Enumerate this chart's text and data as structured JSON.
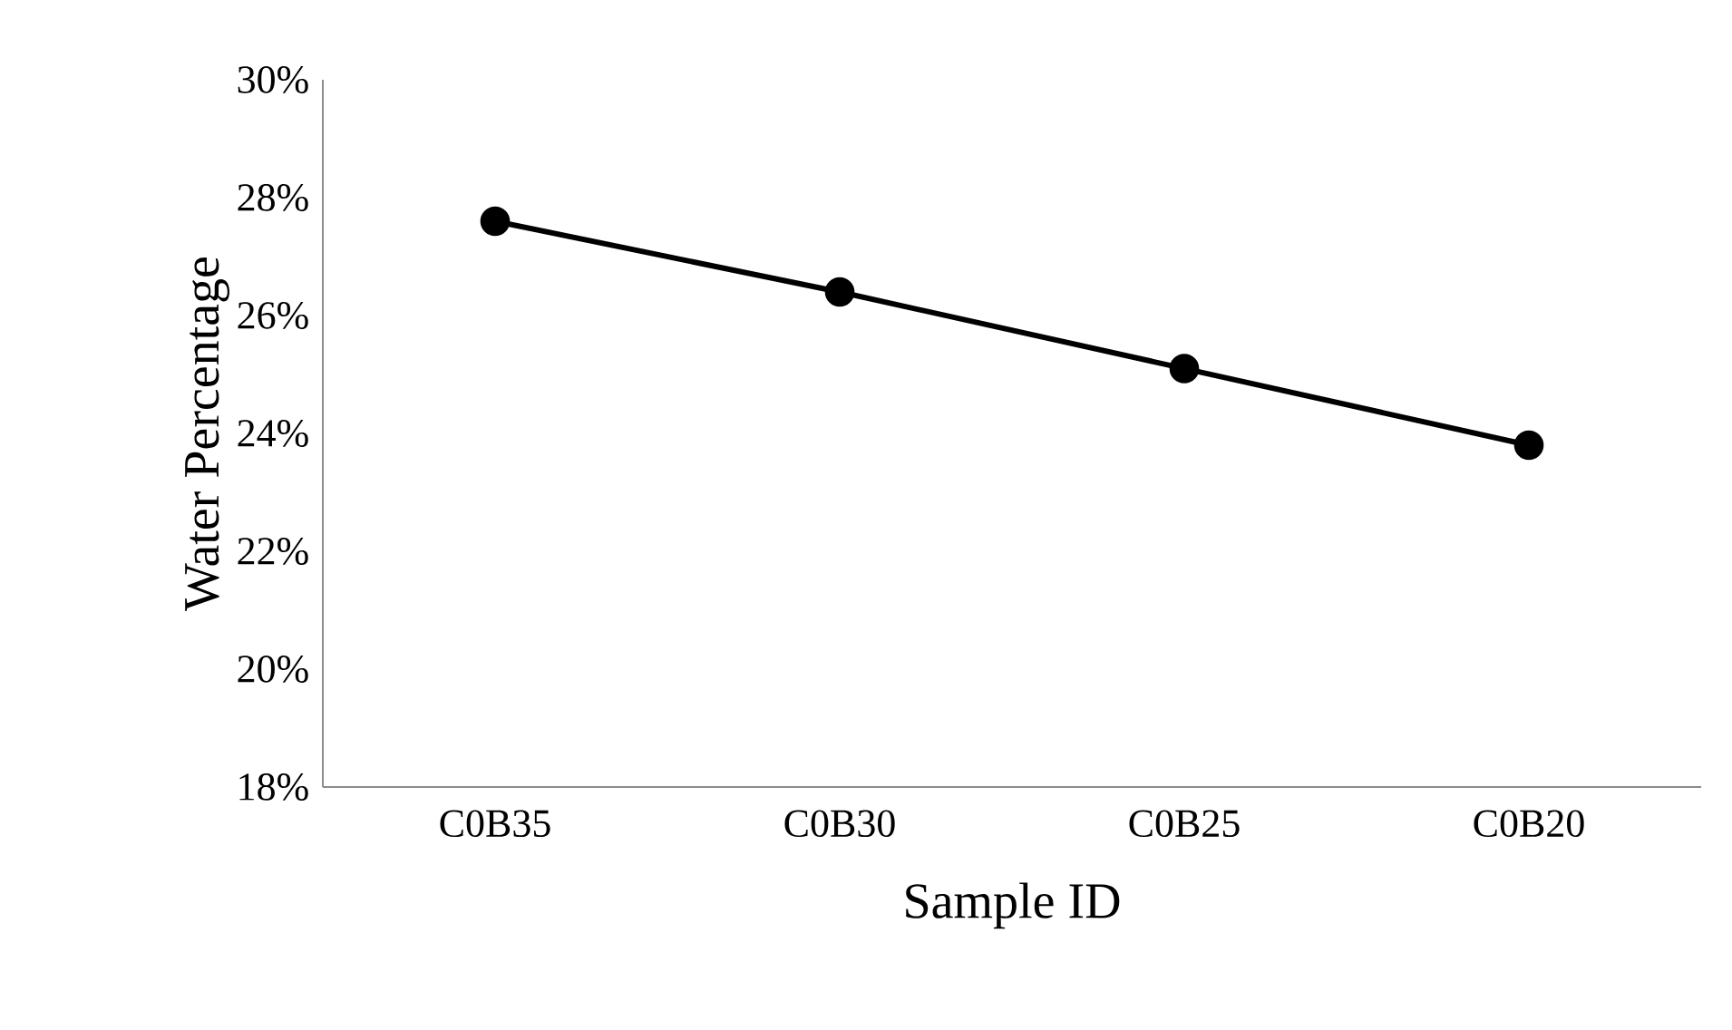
{
  "chart_data": {
    "type": "line",
    "xlabel": "Sample ID",
    "ylabel": "Water Percentage",
    "categories": [
      "C0B35",
      "C0B30",
      "C0B25",
      "C0B20"
    ],
    "series": [
      {
        "color": "#000000",
        "values": [
          27.6,
          26.4,
          25.1,
          23.8
        ]
      }
    ],
    "ylim": [
      18,
      30
    ],
    "yticks": [
      {
        "value": 18,
        "label": "18%"
      },
      {
        "value": 20,
        "label": "20%"
      },
      {
        "value": 22,
        "label": "22%"
      },
      {
        "value": 24,
        "label": "24%"
      },
      {
        "value": 26,
        "label": "26%"
      },
      {
        "value": 28,
        "label": "28%"
      },
      {
        "value": 30,
        "label": "30%"
      }
    ],
    "marker": "circle",
    "line_style": "solid",
    "grid": false,
    "legend": false
  }
}
